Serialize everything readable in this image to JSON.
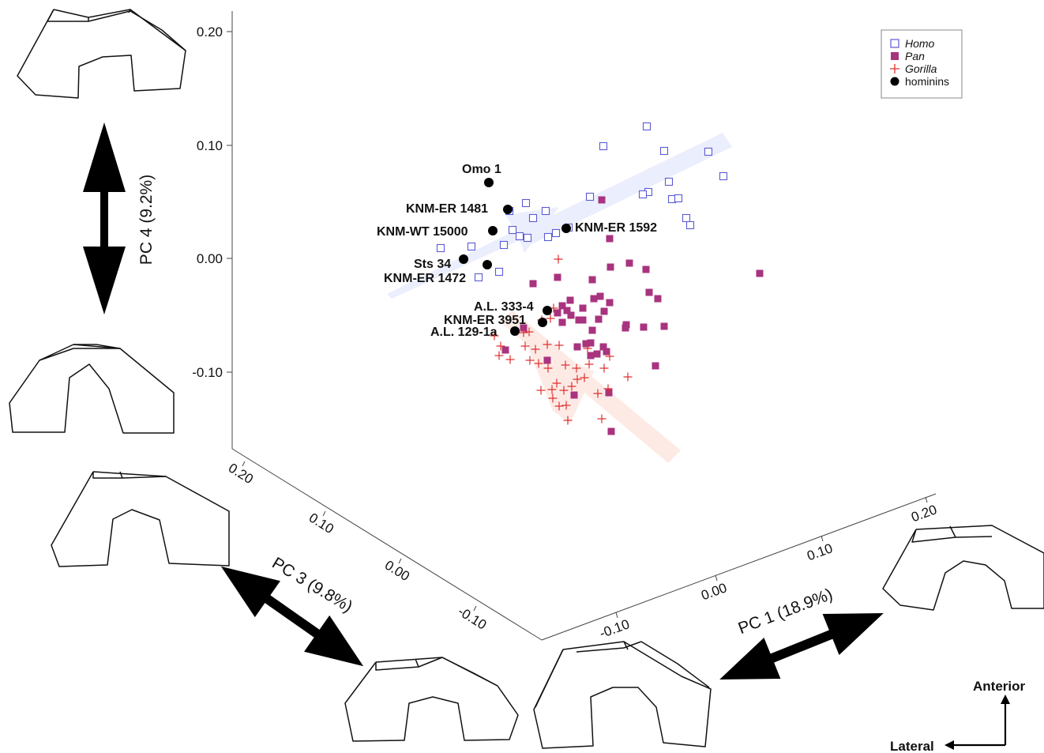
{
  "chart_data": {
    "type": "scatter",
    "axes": {
      "pc4": {
        "label": "PC 4 (9.2%)",
        "ticks": [
          "0.20",
          "0.10",
          "0.00",
          "-0.10"
        ],
        "tick_values": [
          0.2,
          0.1,
          0.0,
          -0.1
        ]
      },
      "pc3": {
        "label": "PC 3 (9.8%)",
        "ticks": [
          "0.20",
          "0.10",
          "0.00",
          "-0.10"
        ],
        "tick_values": [
          0.2,
          0.1,
          0.0,
          -0.1
        ]
      },
      "pc1": {
        "label": "PC 1 (18.9%)",
        "ticks": [
          "-0.10",
          "0.00",
          "0.10",
          "0.20"
        ],
        "tick_values": [
          -0.1,
          0.0,
          0.1,
          0.2
        ]
      }
    },
    "legend": {
      "position": "top-right",
      "entries": [
        {
          "label": "Homo",
          "italic": true,
          "marker": "open-square",
          "color": "#5b5bd6"
        },
        {
          "label": "Pan",
          "italic": true,
          "marker": "filled-square",
          "color": "#a8337f"
        },
        {
          "label": "Gorilla",
          "italic": true,
          "marker": "plus",
          "color": "#e03030"
        },
        {
          "label": "hominins",
          "italic": false,
          "marker": "filled-circle",
          "color": "#000000"
        }
      ]
    },
    "series": [
      {
        "name": "Homo",
        "points": [
          [
            819,
            160
          ],
          [
            764,
            185
          ],
          [
            841,
            191
          ],
          [
            897,
            192
          ],
          [
            916,
            223
          ],
          [
            847,
            230
          ],
          [
            747,
            249
          ],
          [
            821,
            243
          ],
          [
            814,
            246
          ],
          [
            851,
            252
          ],
          [
            859,
            251
          ],
          [
            666,
            257
          ],
          [
            691,
            267
          ],
          [
            869,
            276
          ],
          [
            874,
            285
          ],
          [
            645,
            267
          ],
          [
            675,
            276
          ],
          [
            720,
            288
          ],
          [
            704,
            295
          ],
          [
            694,
            300
          ],
          [
            649,
            291
          ],
          [
            658,
            299
          ],
          [
            668,
            301
          ],
          [
            638,
            310
          ],
          [
            597,
            312
          ],
          [
            558,
            314
          ],
          [
            632,
            344
          ],
          [
            606,
            351
          ]
        ]
      },
      {
        "name": "Pan",
        "points": [
          [
            762,
            253
          ],
          [
            962,
            346
          ],
          [
            772,
            302
          ],
          [
            797,
            333
          ],
          [
            773,
            338
          ],
          [
            818,
            341
          ],
          [
            706,
            351
          ],
          [
            675,
            359
          ],
          [
            750,
            354
          ],
          [
            822,
            370
          ],
          [
            833,
            378
          ],
          [
            760,
            375
          ],
          [
            772,
            383
          ],
          [
            752,
            378
          ],
          [
            722,
            380
          ],
          [
            712,
            387
          ],
          [
            738,
            390
          ],
          [
            718,
            393
          ],
          [
            706,
            396
          ],
          [
            723,
            399
          ],
          [
            733,
            405
          ],
          [
            765,
            394
          ],
          [
            738,
            405
          ],
          [
            758,
            404
          ],
          [
            712,
            408
          ],
          [
            793,
            411
          ],
          [
            815,
            414
          ],
          [
            841,
            413
          ],
          [
            792,
            415
          ],
          [
            750,
            418
          ],
          [
            663,
            415
          ],
          [
            731,
            439
          ],
          [
            742,
            435
          ],
          [
            748,
            434
          ],
          [
            764,
            439
          ],
          [
            768,
            445
          ],
          [
            756,
            448
          ],
          [
            748,
            450
          ],
          [
            640,
            443
          ],
          [
            693,
            456
          ],
          [
            830,
            463
          ],
          [
            771,
            497
          ],
          [
            727,
            500
          ],
          [
            774,
            546
          ]
        ]
      },
      {
        "name": "Gorilla",
        "points": [
          [
            707,
            328
          ],
          [
            701,
            390
          ],
          [
            686,
            405
          ],
          [
            697,
            403
          ],
          [
            663,
            421
          ],
          [
            670,
            420
          ],
          [
            626,
            425
          ],
          [
            634,
            438
          ],
          [
            665,
            438
          ],
          [
            678,
            442
          ],
          [
            693,
            436
          ],
          [
            708,
            437
          ],
          [
            744,
            441
          ],
          [
            632,
            450
          ],
          [
            646,
            455
          ],
          [
            671,
            456
          ],
          [
            682,
            460
          ],
          [
            694,
            466
          ],
          [
            716,
            462
          ],
          [
            730,
            466
          ],
          [
            746,
            461
          ],
          [
            765,
            466
          ],
          [
            772,
            451
          ],
          [
            740,
            478
          ],
          [
            731,
            480
          ],
          [
            705,
            485
          ],
          [
            685,
            494
          ],
          [
            699,
            493
          ],
          [
            714,
            494
          ],
          [
            700,
            504
          ],
          [
            724,
            489
          ],
          [
            757,
            498
          ],
          [
            770,
            492
          ],
          [
            795,
            477
          ],
          [
            708,
            514
          ],
          [
            717,
            513
          ],
          [
            719,
            532
          ],
          [
            762,
            530
          ]
        ]
      },
      {
        "name": "hominins",
        "points": [
          [
            619,
            231
          ],
          [
            643,
            265
          ],
          [
            624,
            292
          ],
          [
            717,
            289
          ],
          [
            587,
            328
          ],
          [
            617,
            335
          ],
          [
            693,
            393
          ],
          [
            687,
            408
          ],
          [
            652,
            419
          ]
        ]
      }
    ],
    "labels": [
      {
        "text": "Omo 1"
      },
      {
        "text": "KNM-ER 1481"
      },
      {
        "text": "KNM-WT 15000"
      },
      {
        "text": "KNM-ER 1592"
      },
      {
        "text": "Sts 34"
      },
      {
        "text": "KNM-ER 1472"
      },
      {
        "text": "A.L. 333-4"
      },
      {
        "text": "KNM-ER 3951"
      },
      {
        "text": "A.L. 129-1a"
      }
    ],
    "orientation": {
      "anterior": "Anterior",
      "lateral": "Lateral"
    }
  }
}
